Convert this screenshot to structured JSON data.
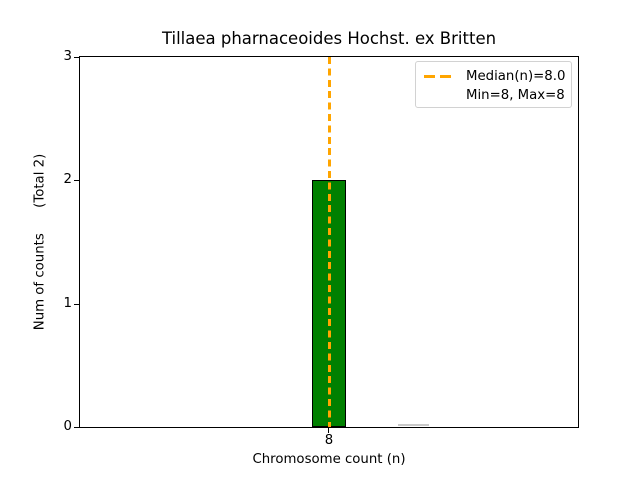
{
  "figure": {
    "background": "#ffffff"
  },
  "chart_data": {
    "type": "bar",
    "title": "Tillaea pharnaceoides Hochst. ex Britten",
    "xlabel": "Chromosome count (n)",
    "ylabel": "Num of counts      (Total 2)",
    "categories": [
      8
    ],
    "values": [
      2
    ],
    "total_counts": 2,
    "xtick_labels": [
      "8"
    ],
    "ytick_labels": [
      "3",
      "2",
      "1",
      "0"
    ],
    "ylim": [
      0,
      3
    ],
    "grid": false,
    "bar_color": "#008000",
    "bar_edge_color": "#000000",
    "median_line": {
      "value": 8.0,
      "color": "#FFA500",
      "style": "dashed",
      "orientation": "vertical"
    },
    "legend": {
      "position": "upper right",
      "entries": [
        {
          "label": "Median(n)=8.0",
          "handle": "orange-dashed-line"
        },
        {
          "label": "Min=8, Max=8",
          "handle": "none"
        }
      ]
    }
  }
}
